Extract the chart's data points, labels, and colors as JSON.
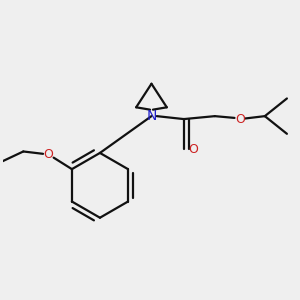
{
  "bg_color": "#efefef",
  "bond_color": "#111111",
  "n_color": "#2222cc",
  "o_color": "#cc2222",
  "lw": 1.6,
  "fig_w": 3.0,
  "fig_h": 3.0,
  "xlim": [
    0,
    10
  ],
  "ylim": [
    0,
    10
  ]
}
